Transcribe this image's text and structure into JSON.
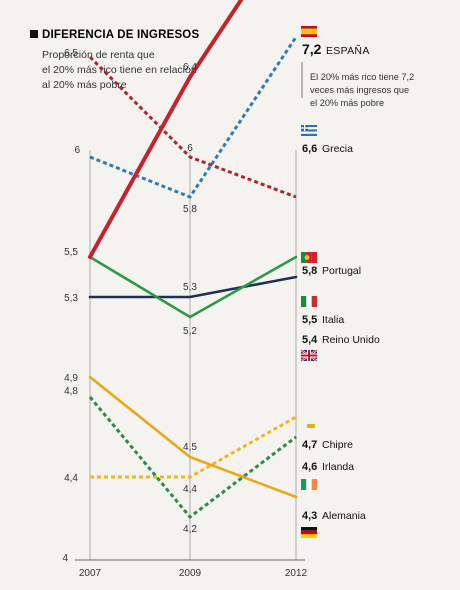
{
  "chart_data": {
    "type": "line",
    "title": "DIFERENCIA DE INGRESOS",
    "subtitle": [
      "Proporción de renta que",
      "el 20% más rico tiene en relación",
      "al 20% más pobre"
    ],
    "x": [
      "2007",
      "2009",
      "2012"
    ],
    "y_axis_label": "4",
    "ylim": [
      4,
      7.2
    ],
    "grid": "vertical lines at each year",
    "annotation": [
      "El 20% más rico tiene 7,2",
      "veces más ingresos que",
      "el 20% más pobre"
    ],
    "series": [
      {
        "name": "ESPAÑA",
        "values": [
          5.5,
          6.4,
          7.2
        ],
        "end_label": "7,2",
        "color": "#c4232b",
        "style": "solid",
        "labels": [
          "",
          "6,4",
          ""
        ]
      },
      {
        "name": "Grecia",
        "values": [
          6.0,
          5.8,
          6.6
        ],
        "end_label": "6,6",
        "color": "#2f7bb8",
        "style": "dotted",
        "labels": [
          "6",
          "5,8",
          ""
        ]
      },
      {
        "name": "Portugal",
        "values": [
          6.5,
          6.0,
          5.8
        ],
        "end_label": "5,8",
        "color": "#b0262e",
        "style": "dotted",
        "labels": [
          "6,5",
          "6",
          ""
        ]
      },
      {
        "name": "Italia",
        "values": [
          5.5,
          5.2,
          5.5
        ],
        "end_label": "5,5",
        "color": "#2f9a45",
        "style": "solid",
        "labels": [
          "5,5",
          "5,2",
          ""
        ]
      },
      {
        "name": "Reino Unido",
        "values": [
          5.3,
          5.3,
          5.4
        ],
        "end_label": "5,4",
        "color": "#1f2f5a",
        "style": "solid",
        "labels": [
          "5,3",
          "5,3",
          ""
        ]
      },
      {
        "name": "Chipre",
        "values": [
          4.4,
          4.4,
          4.7
        ],
        "end_label": "4,7",
        "color": "#f2b51f",
        "style": "dotted",
        "labels": [
          "4,4",
          "4,4",
          ""
        ]
      },
      {
        "name": "Irlanda",
        "values": [
          4.8,
          4.2,
          4.6
        ],
        "end_label": "4,6",
        "color": "#2f8a45",
        "style": "dotted",
        "labels": [
          "4,8",
          "4,2",
          ""
        ]
      },
      {
        "name": "Alemania",
        "values": [
          4.9,
          4.5,
          4.3
        ],
        "end_label": "4,3",
        "color": "#e8a81b",
        "style": "solid",
        "labels": [
          "4,9",
          "4,5",
          ""
        ]
      }
    ]
  }
}
